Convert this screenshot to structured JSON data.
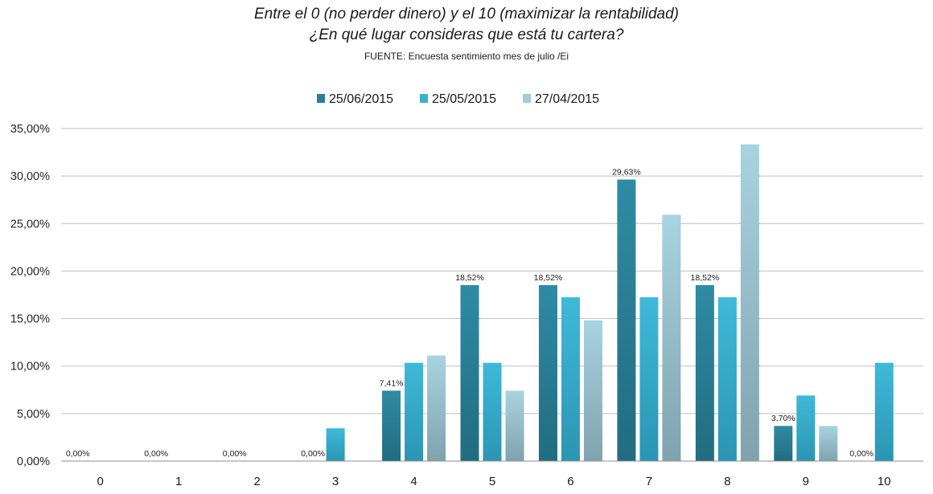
{
  "chart_data": {
    "type": "bar",
    "title_line1": "Entre el 0 (no perder dinero) y el 10 (maximizar la rentabilidad)",
    "title_line2": "¿En qué lugar consideras que está tu cartera?",
    "source": "FUENTE: Encuesta sentimiento mes de julio /Ei",
    "categories": [
      "0",
      "1",
      "2",
      "3",
      "4",
      "5",
      "6",
      "7",
      "8",
      "9",
      "10"
    ],
    "ylim": [
      0,
      35
    ],
    "yticks": [
      "0,00%",
      "5,00%",
      "10,00%",
      "15,00%",
      "20,00%",
      "25,00%",
      "30,00%",
      "35,00%"
    ],
    "grid": true,
    "legend_position": "top-center",
    "series": [
      {
        "name": "25/06/2015",
        "color": "#2a7f96",
        "values": [
          0,
          0,
          0,
          0,
          7.41,
          18.52,
          18.52,
          29.63,
          18.52,
          3.7,
          0
        ],
        "labels": [
          "0,00%",
          "0,00%",
          "0,00%",
          "0,00%",
          "7,41%",
          "18,52%",
          "18,52%",
          "29,63%",
          "18,52%",
          "3,70%",
          "0,00%"
        ]
      },
      {
        "name": "25/05/2015",
        "color": "#3ab0cf",
        "values": [
          0,
          0,
          0,
          3.45,
          10.34,
          10.34,
          17.24,
          17.24,
          17.24,
          6.9,
          10.34
        ]
      },
      {
        "name": "27/04/2015",
        "color": "#a2cbd8",
        "values": [
          0,
          0,
          0,
          0,
          11.11,
          7.41,
          14.81,
          25.93,
          33.33,
          3.7,
          0
        ]
      }
    ]
  }
}
